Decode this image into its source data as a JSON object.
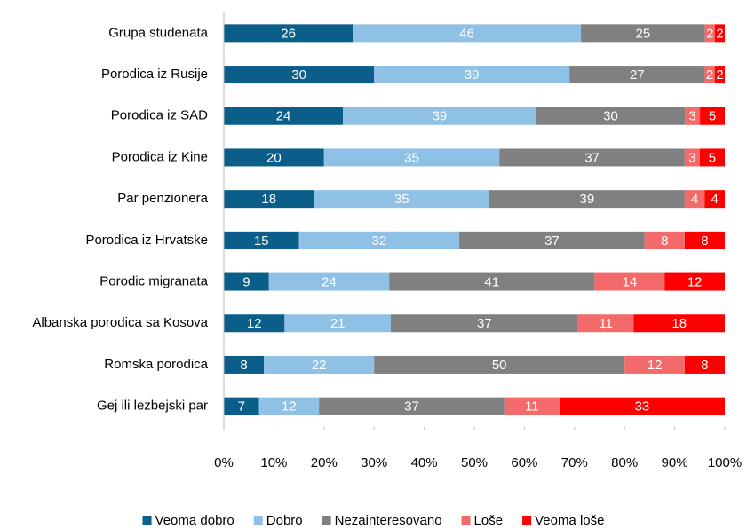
{
  "chart_data": {
    "type": "bar",
    "orientation": "horizontal",
    "stacking": "percent",
    "categories": [
      "Grupa studenata",
      "Porodica iz Rusije",
      "Porodica iz SAD",
      "Porodica iz Kine",
      "Par penzionera",
      "Porodica iz Hrvatske",
      "Porodic migranata",
      "Albanska porodica sa Kosova",
      "Romska porodica",
      "Gej ili lezbejski par"
    ],
    "series": [
      {
        "name": "Veoma dobro",
        "color": "#0b5e8a",
        "values": [
          26,
          30,
          24,
          20,
          18,
          15,
          9,
          12,
          8,
          7
        ]
      },
      {
        "name": "Dobro",
        "color": "#8fc1e6",
        "values": [
          46,
          39,
          39,
          35,
          35,
          32,
          24,
          21,
          22,
          12
        ]
      },
      {
        "name": "Nezainteresovano",
        "color": "#808080",
        "values": [
          25,
          27,
          30,
          37,
          39,
          37,
          41,
          37,
          50,
          37
        ]
      },
      {
        "name": "Loše",
        "color": "#f46a6a",
        "values": [
          2,
          2,
          3,
          3,
          4,
          8,
          14,
          11,
          12,
          11
        ]
      },
      {
        "name": "Veoma loše",
        "color": "#ff0000",
        "values": [
          2,
          2,
          5,
          5,
          4,
          8,
          12,
          18,
          8,
          33
        ]
      }
    ],
    "xlim": [
      0,
      100
    ],
    "xticks": [
      {
        "value": 0,
        "label": "0%"
      },
      {
        "value": 10,
        "label": "10%"
      },
      {
        "value": 20,
        "label": "20%"
      },
      {
        "value": 30,
        "label": "30%"
      },
      {
        "value": 40,
        "label": "40%"
      },
      {
        "value": 50,
        "label": "50%"
      },
      {
        "value": 60,
        "label": "60%"
      },
      {
        "value": 70,
        "label": "70%"
      },
      {
        "value": 80,
        "label": "80%"
      },
      {
        "value": 90,
        "label": "90%"
      },
      {
        "value": 100,
        "label": "100%"
      }
    ],
    "legend": "bottom",
    "grid": false
  }
}
